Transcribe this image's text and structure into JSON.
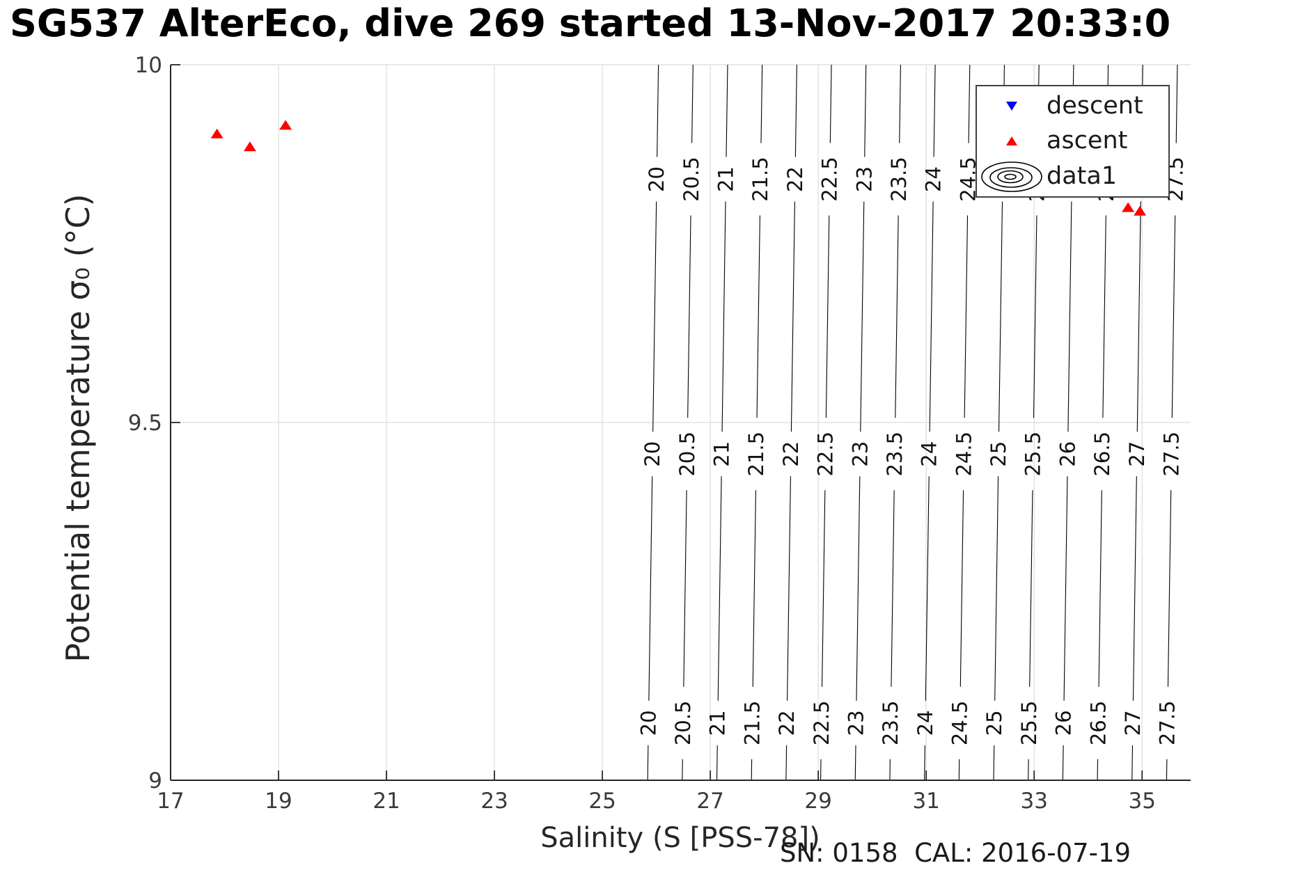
{
  "title": "SG537 AlterEco, dive 269 started 13-Nov-2017 20:33:0",
  "axes": {
    "xlabel": "Salinity (S [PSS-78])",
    "ylabel": "Potential temperature σ₀ (°C)",
    "xtick_labels": [
      "17",
      "19",
      "21",
      "23",
      "25",
      "27",
      "29",
      "31",
      "33",
      "35"
    ],
    "ytick_labels": [
      "9",
      "9.5",
      "10"
    ]
  },
  "footer": {
    "sn_cal": "SN: 0158  CAL: 2016-07-19"
  },
  "legend": {
    "items": [
      {
        "label": "descent",
        "marker": "triangle-down-icon",
        "color": "#0000ff"
      },
      {
        "label": "ascent",
        "marker": "triangle-up-icon",
        "color": "#ff0000"
      },
      {
        "label": "data1",
        "marker": "contour-rings-icon",
        "color": "#000000"
      }
    ]
  },
  "colors": {
    "descent": "#0000ff",
    "ascent": "#ff0000",
    "contour": "#000000",
    "grid": "#dcdcdc",
    "axis": "#262626",
    "tick_label": "#3b3b3b"
  },
  "chart_data": {
    "type": "scatter",
    "title": "SG537 AlterEco, dive 269 started 13-Nov-2017 20:33:0",
    "xlabel": "Salinity (S [PSS-78])",
    "ylabel": "Potential temperature σ₀ (°C)",
    "xlim": [
      17,
      35.9
    ],
    "ylim": [
      9,
      10
    ],
    "xticks": [
      17,
      19,
      21,
      23,
      25,
      27,
      29,
      31,
      33,
      35
    ],
    "yticks": [
      9,
      9.5,
      10
    ],
    "grid": true,
    "legend_position": "top-right",
    "series": [
      {
        "name": "descent",
        "marker": "triangle-down",
        "color": "#0000ff",
        "points": []
      },
      {
        "name": "ascent",
        "marker": "triangle-up",
        "color": "#ff0000",
        "points": [
          [
            17.86,
            9.903
          ],
          [
            18.47,
            9.885
          ],
          [
            19.13,
            9.915
          ],
          [
            34.74,
            9.8
          ],
          [
            34.96,
            9.795
          ]
        ]
      }
    ],
    "contours": {
      "name": "data1",
      "levels": [
        20,
        20.5,
        21,
        21.5,
        22,
        22.5,
        23,
        23.5,
        24,
        24.5,
        25,
        25.5,
        26,
        26.5,
        27,
        27.5
      ],
      "color": "#000000",
      "salinity_of_level20_at_midband": 25.93,
      "salinity_per_halfsigma_level": 0.641,
      "isopycnal_dS_dT": 0.2,
      "label_temperatures": [
        9.84,
        9.456,
        9.08
      ]
    }
  }
}
